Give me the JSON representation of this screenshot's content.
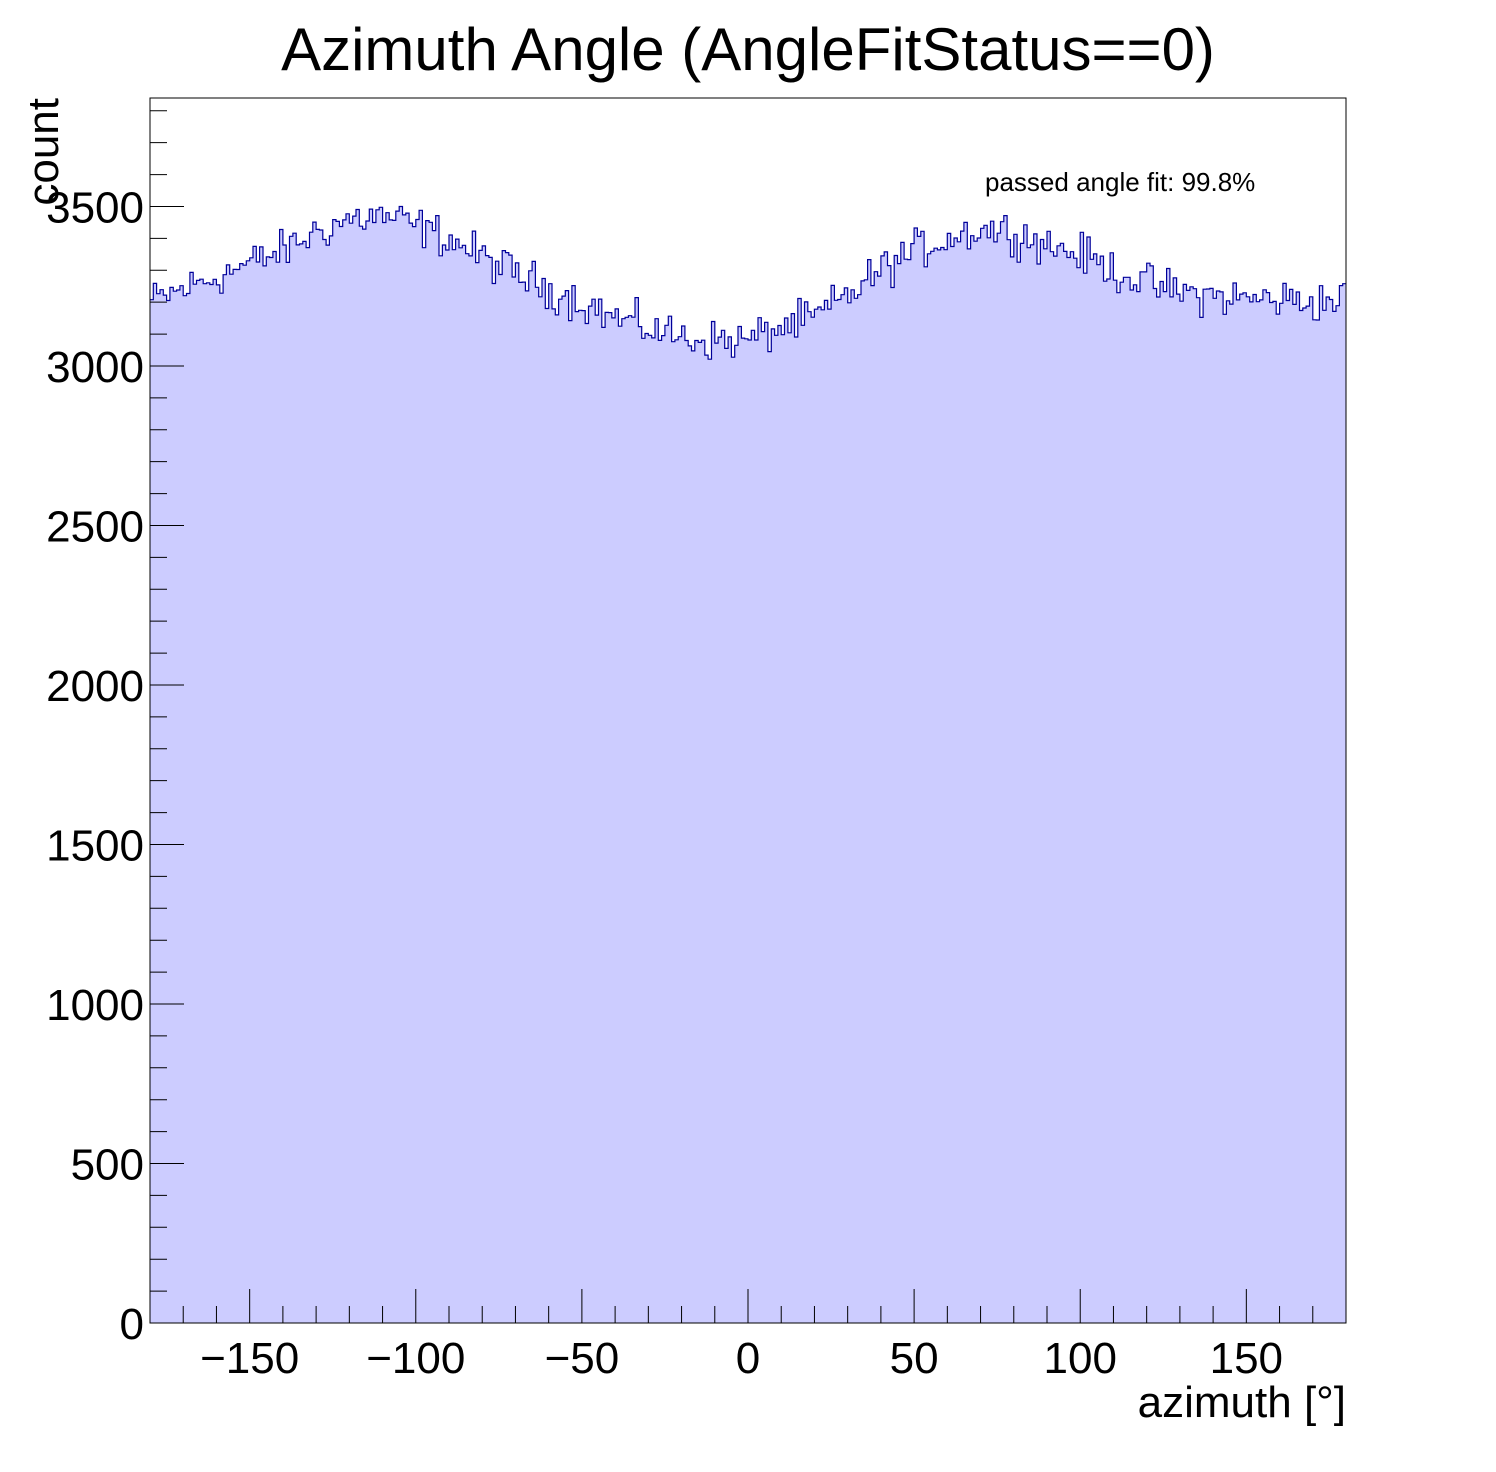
{
  "chart_data": {
    "type": "histogram",
    "title": "Azimuth Angle (AngleFitStatus==0)",
    "xlabel": "azimuth [°]",
    "ylabel": "count",
    "annotation": "passed angle fit: 99.8%",
    "xlim": [
      -180,
      180
    ],
    "ylim": [
      0,
      3840
    ],
    "x_ticks": [
      -150,
      -100,
      -50,
      0,
      50,
      100,
      150
    ],
    "x_tick_labels": [
      "−150",
      "−100",
      "−50",
      "0",
      "50",
      "100",
      "150"
    ],
    "y_ticks": [
      0,
      500,
      1000,
      1500,
      2000,
      2500,
      3000,
      3500
    ],
    "y_tick_labels": [
      "0",
      "500",
      "1000",
      "1500",
      "2000",
      "2500",
      "3000",
      "3500"
    ],
    "bin_width": 1,
    "trend": {
      "x": [
        -180,
        -165,
        -150,
        -140,
        -130,
        -120,
        -110,
        -100,
        -90,
        -80,
        -70,
        -60,
        -50,
        -40,
        -30,
        -20,
        -10,
        0,
        10,
        20,
        30,
        40,
        50,
        60,
        70,
        80,
        90,
        100,
        110,
        120,
        130,
        140,
        150,
        160,
        170,
        180
      ],
      "y": [
        3200,
        3260,
        3320,
        3360,
        3420,
        3460,
        3470,
        3440,
        3400,
        3340,
        3290,
        3240,
        3200,
        3150,
        3120,
        3090,
        3080,
        3080,
        3120,
        3150,
        3220,
        3300,
        3360,
        3400,
        3430,
        3420,
        3380,
        3350,
        3300,
        3260,
        3230,
        3220,
        3210,
        3210,
        3200,
        3210
      ]
    },
    "noise_amplitude": 55,
    "colors": {
      "fill": "#ccccff",
      "line": "#000099",
      "axis": "#000000"
    }
  }
}
